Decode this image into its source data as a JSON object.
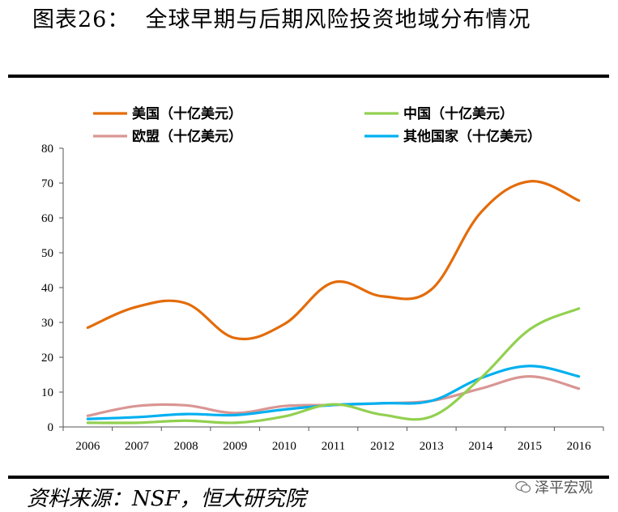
{
  "header": {
    "title": "图表26：  全球早期与后期风险投资地域分布情况"
  },
  "footer": {
    "source": "资料来源：NSF，恒大研究院",
    "watermark": "泽平宏观"
  },
  "chart_data": {
    "type": "line",
    "title": "",
    "xlabel": "",
    "ylabel": "",
    "x": [
      "2006",
      "2007",
      "2008",
      "2009",
      "2010",
      "2011",
      "2012",
      "2013",
      "2014",
      "2015",
      "2016"
    ],
    "ylim": [
      0,
      80
    ],
    "yticks": [
      0,
      10,
      20,
      30,
      40,
      50,
      60,
      70,
      80
    ],
    "grid": false,
    "legend_position": "top",
    "series": [
      {
        "name": "美国（十亿美元）",
        "color": "#E36C0A",
        "values": [
          28.5,
          34.5,
          35.5,
          25.5,
          29.5,
          41.5,
          37.5,
          39.5,
          61.5,
          70.5,
          65
        ]
      },
      {
        "name": "中国（十亿美元）",
        "color": "#92D050",
        "values": [
          1.2,
          1.2,
          1.8,
          1.2,
          3,
          6.5,
          3.5,
          3,
          14,
          28,
          34
        ]
      },
      {
        "name": "欧盟（十亿美元）",
        "color": "#D99694",
        "values": [
          3.2,
          6,
          6.2,
          4,
          6,
          6.3,
          6.8,
          7.5,
          11,
          14.5,
          11
        ]
      },
      {
        "name": "其他国家（十亿美元）",
        "color": "#00B0F0",
        "values": [
          2.3,
          2.8,
          3.7,
          3.4,
          5,
          6.3,
          6.8,
          7.5,
          14,
          17.5,
          14.5
        ]
      }
    ]
  }
}
